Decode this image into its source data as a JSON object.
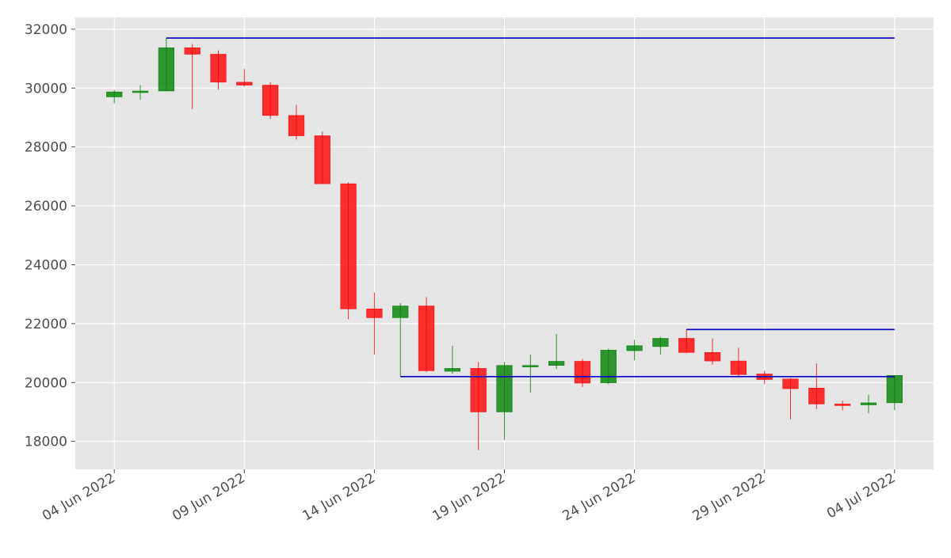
{
  "chart_data": {
    "type": "candlestick",
    "title": "",
    "xlabel": "",
    "ylabel": "",
    "ylim": [
      17050,
      32400
    ],
    "xlim": [
      "2022-06-02T12:00",
      "2022-07-05T12:00"
    ],
    "grid": true,
    "colors": {
      "background": "#e5e5e5",
      "grid": "#ffffff",
      "up": "#008000",
      "down": "#ff0000",
      "lines": "#0000cc",
      "text": "#4d4d4d"
    },
    "y_ticks": [
      {
        "value": 18000,
        "label": "18000"
      },
      {
        "value": 20000,
        "label": "20000"
      },
      {
        "value": 22000,
        "label": "22000"
      },
      {
        "value": 24000,
        "label": "24000"
      },
      {
        "value": 26000,
        "label": "26000"
      },
      {
        "value": 28000,
        "label": "28000"
      },
      {
        "value": 30000,
        "label": "30000"
      },
      {
        "value": 32000,
        "label": "32000"
      }
    ],
    "x_ticks": [
      {
        "date": "2022-06-04",
        "label": "04 Jun 2022"
      },
      {
        "date": "2022-06-09",
        "label": "09 Jun 2022"
      },
      {
        "date": "2022-06-14",
        "label": "14 Jun 2022"
      },
      {
        "date": "2022-06-19",
        "label": "19 Jun 2022"
      },
      {
        "date": "2022-06-24",
        "label": "24 Jun 2022"
      },
      {
        "date": "2022-06-29",
        "label": "29 Jun 2022"
      },
      {
        "date": "2022-07-04",
        "label": "04 Jul 2022"
      }
    ],
    "candles": [
      {
        "date": "2022-06-04",
        "open": 29700,
        "high": 29930,
        "low": 29480,
        "close": 29870
      },
      {
        "date": "2022-06-05",
        "open": 29850,
        "high": 30100,
        "low": 29600,
        "close": 29900
      },
      {
        "date": "2022-06-06",
        "open": 29900,
        "high": 31700,
        "low": 29900,
        "close": 31370
      },
      {
        "date": "2022-06-07",
        "open": 31370,
        "high": 31500,
        "low": 29290,
        "close": 31150
      },
      {
        "date": "2022-06-08",
        "open": 31150,
        "high": 31280,
        "low": 29950,
        "close": 30200
      },
      {
        "date": "2022-06-09",
        "open": 30200,
        "high": 30650,
        "low": 30050,
        "close": 30100
      },
      {
        "date": "2022-06-10",
        "open": 30100,
        "high": 30200,
        "low": 28950,
        "close": 29070
      },
      {
        "date": "2022-06-11",
        "open": 29070,
        "high": 29430,
        "low": 28250,
        "close": 28380
      },
      {
        "date": "2022-06-12",
        "open": 28380,
        "high": 28520,
        "low": 26750,
        "close": 26750
      },
      {
        "date": "2022-06-13",
        "open": 26750,
        "high": 26800,
        "low": 22150,
        "close": 22500
      },
      {
        "date": "2022-06-14",
        "open": 22500,
        "high": 23050,
        "low": 20950,
        "close": 22200
      },
      {
        "date": "2022-06-15",
        "open": 22200,
        "high": 22700,
        "low": 20200,
        "close": 22600
      },
      {
        "date": "2022-06-16",
        "open": 22600,
        "high": 22900,
        "low": 20350,
        "close": 20400
      },
      {
        "date": "2022-06-17",
        "open": 20380,
        "high": 21250,
        "low": 20300,
        "close": 20480
      },
      {
        "date": "2022-06-18",
        "open": 20480,
        "high": 20700,
        "low": 17700,
        "close": 19000
      },
      {
        "date": "2022-06-19",
        "open": 19000,
        "high": 20700,
        "low": 18050,
        "close": 20580
      },
      {
        "date": "2022-06-20",
        "open": 20540,
        "high": 20950,
        "low": 19650,
        "close": 20580
      },
      {
        "date": "2022-06-21",
        "open": 20580,
        "high": 21650,
        "low": 20450,
        "close": 20720
      },
      {
        "date": "2022-06-22",
        "open": 20720,
        "high": 20800,
        "low": 19850,
        "close": 19980
      },
      {
        "date": "2022-06-23",
        "open": 19990,
        "high": 21150,
        "low": 19950,
        "close": 21100
      },
      {
        "date": "2022-06-24",
        "open": 21080,
        "high": 21450,
        "low": 20750,
        "close": 21250
      },
      {
        "date": "2022-06-25",
        "open": 21220,
        "high": 21550,
        "low": 20950,
        "close": 21500
      },
      {
        "date": "2022-06-26",
        "open": 21500,
        "high": 21800,
        "low": 21000,
        "close": 21020
      },
      {
        "date": "2022-06-27",
        "open": 21020,
        "high": 21500,
        "low": 20600,
        "close": 20730
      },
      {
        "date": "2022-06-28",
        "open": 20730,
        "high": 21180,
        "low": 20200,
        "close": 20270
      },
      {
        "date": "2022-06-29",
        "open": 20290,
        "high": 20400,
        "low": 19950,
        "close": 20100
      },
      {
        "date": "2022-06-30",
        "open": 20120,
        "high": 20150,
        "low": 18750,
        "close": 19790
      },
      {
        "date": "2022-07-01",
        "open": 19810,
        "high": 20650,
        "low": 19100,
        "close": 19270
      },
      {
        "date": "2022-07-02",
        "open": 19270,
        "high": 19380,
        "low": 19050,
        "close": 19230
      },
      {
        "date": "2022-07-03",
        "open": 19240,
        "high": 19580,
        "low": 18960,
        "close": 19310
      },
      {
        "date": "2022-07-04",
        "open": 19310,
        "high": 20250,
        "low": 19060,
        "close": 20240
      }
    ],
    "horizontal_lines": [
      {
        "y": 31700,
        "from": "2022-06-06",
        "to": "2022-07-04"
      },
      {
        "y": 21800,
        "from": "2022-06-26",
        "to": "2022-07-04"
      },
      {
        "y": 20200,
        "from": "2022-06-15",
        "to": "2022-07-04"
      }
    ]
  }
}
